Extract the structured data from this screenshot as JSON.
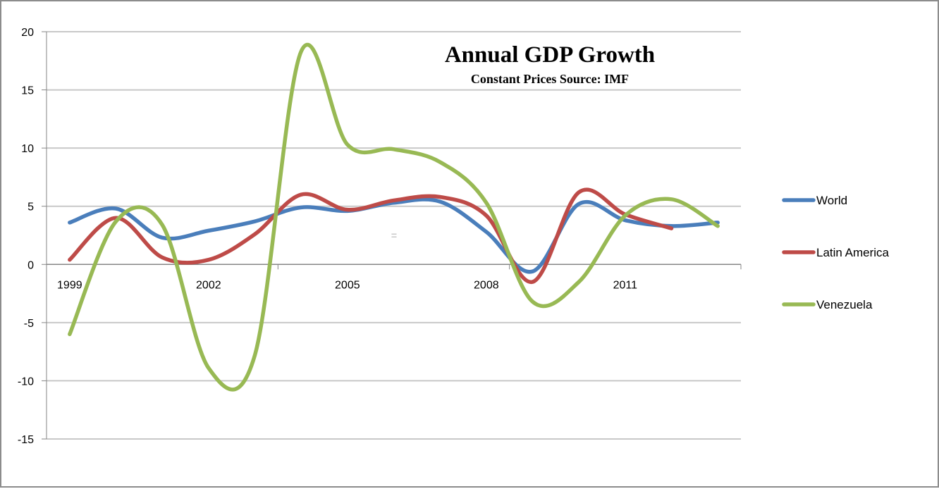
{
  "chart_data": {
    "type": "line",
    "title": "Annual GDP Growth",
    "subtitle": "Constant Prices Source: IMF",
    "xlabel": "",
    "ylabel": "",
    "ylim": [
      -15,
      20
    ],
    "yticks": [
      20,
      15,
      10,
      5,
      0,
      -5,
      -10,
      -15
    ],
    "categories": [
      "1999",
      "2000",
      "2001",
      "2002",
      "2003",
      "2004",
      "2005",
      "2006",
      "2007",
      "2008",
      "2009",
      "2010",
      "2011",
      "2012",
      "2013"
    ],
    "xtick_labels": [
      "1999",
      "2002",
      "2005",
      "2008",
      "2011"
    ],
    "grid": true,
    "smooth": true,
    "legend_position": "right",
    "series": [
      {
        "name": "World",
        "color": "#4a7ebb",
        "values": [
          3.6,
          4.8,
          2.3,
          2.9,
          3.7,
          4.9,
          4.6,
          5.3,
          5.4,
          2.8,
          -0.6,
          5.2,
          3.8,
          3.3,
          3.6
        ]
      },
      {
        "name": "Latin America",
        "color": "#be4b48",
        "values": [
          0.4,
          4.0,
          0.6,
          0.4,
          2.6,
          6.0,
          4.7,
          5.5,
          5.8,
          4.2,
          -1.5,
          6.2,
          4.3,
          3.1,
          null
        ]
      },
      {
        "name": "Venezuela",
        "color": "#98b954",
        "values": [
          -6.0,
          3.7,
          3.4,
          -8.9,
          -7.8,
          18.3,
          10.3,
          9.9,
          8.8,
          5.3,
          -3.2,
          -1.5,
          4.2,
          5.6,
          3.3
        ]
      }
    ],
    "annotations": [
      "="
    ]
  }
}
